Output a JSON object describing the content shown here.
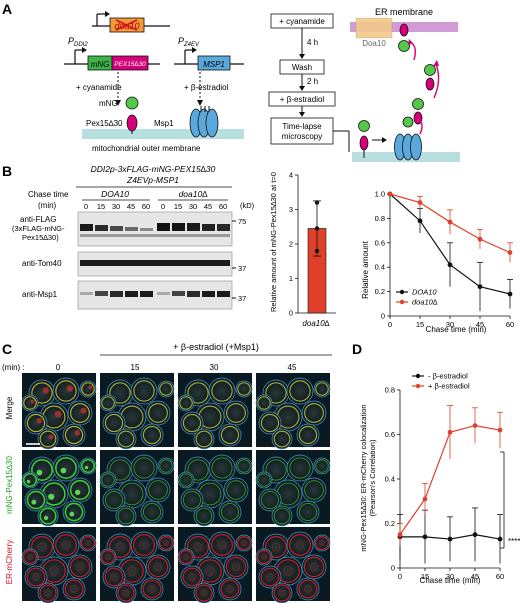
{
  "panelA": {
    "letter": "A",
    "gene_doa10": "doa10",
    "promoter_ddi2": "P",
    "promoter_ddi2_sub": "DDI2",
    "promoter_z4ev": "P",
    "promoter_z4ev_sub": "Z4EV",
    "gene_mng": "mNG",
    "gene_pex": "PEX15∆30",
    "gene_msp1": "MSP1",
    "add_cyanamide": "+ cyanamide",
    "add_estradiol": "+ β-estradiol",
    "label_mng": "mNG",
    "label_pex": "Pex15∆30",
    "label_msp1": "Msp1",
    "label_mito": "mitochondrial outer membrane",
    "flow_cyanamide": "+ cyanamide",
    "flow_4h": "4 h",
    "flow_wash": "Wash",
    "flow_2h": "2 h",
    "flow_estradiol": "+ β-estradiol",
    "flow_timelapse1": "Time-lapse",
    "flow_timelapse2": "microscopy",
    "er_membrane": "ER membrane",
    "doa10_cartoon": "Doa10"
  },
  "panelB": {
    "letter": "B",
    "construct1": "DDI2p-3xFLAG-mNG-PEX15∆30",
    "construct2": "Z4EVp-MSP1",
    "chase_label": "Chase time",
    "chase_unit": "(min)",
    "strain1": "DOA10",
    "strain2": "doa10∆",
    "times": [
      "0",
      "15",
      "30",
      "45",
      "60",
      "0",
      "15",
      "30",
      "45",
      "60"
    ],
    "kd": "(kD)",
    "blot1_l1": "anti-FLAG",
    "blot1_l2": "(3xFLAG-mNG-",
    "blot1_l3": "Pex15∆30)",
    "blot2": "anti-Tom40",
    "blot3": "anti-Msp1",
    "mw75": "75",
    "mw37a": "37",
    "mw37b": "37"
  },
  "bar_chart": {
    "ylabel": "Relative amount of mNG-Pex15∆30 at t=0",
    "xlabel": "doa10∆",
    "ticks": [
      "0",
      "1",
      "2",
      "3",
      "4"
    ]
  },
  "line_chart_B": {
    "ylabel": "Relative amount",
    "xlabel": "Chase time (min)",
    "yticks": [
      "0",
      "0.2",
      "0.4",
      "0.6",
      "0.8",
      "1.0"
    ],
    "xticks": [
      "0",
      "15",
      "30",
      "45",
      "60"
    ],
    "legend": [
      "DOA10",
      "doa10∆"
    ]
  },
  "panelC": {
    "letter": "C",
    "header": "+ β-estradiol (+Msp1)",
    "min_label": "(min) :",
    "times": [
      "0",
      "15",
      "30",
      "45"
    ],
    "row1": "Merge",
    "row2": "mNG-Pex15∆30",
    "row3": "ER-mCherry"
  },
  "panelD": {
    "letter": "D",
    "ylabel1": "mNG-Pex15∆30: ER-mCherry colocalization",
    "ylabel2": "(Pearson's Correlation)",
    "xlabel": "Chase time (min)",
    "yticks": [
      "0",
      "0.2",
      "0.4",
      "0.6",
      "0.8"
    ],
    "xticks": [
      "0",
      "15",
      "30",
      "45",
      "60"
    ],
    "legend": [
      "- β-estradiol",
      "+ β-estradiol"
    ],
    "signif": "****"
  },
  "chart_data": [
    {
      "type": "bar",
      "categories": [
        "doa10∆"
      ],
      "values": [
        2.45
      ],
      "error": [
        0.8
      ],
      "points": [
        1.8,
        2.45,
        3.2
      ],
      "ylim": [
        0,
        4
      ],
      "xlabel": "doa10∆",
      "ylabel": "Relative amount of mNG-Pex15∆30 at t=0",
      "color": "#e0402a"
    },
    {
      "type": "line",
      "x": [
        0,
        15,
        30,
        45,
        60
      ],
      "xlim": [
        0,
        60
      ],
      "ylim": [
        0,
        1.0
      ],
      "xlabel": "Chase time (min)",
      "ylabel": "Relative amount",
      "series": [
        {
          "name": "DOA10",
          "values": [
            1.0,
            0.78,
            0.42,
            0.24,
            0.18
          ],
          "error": [
            0,
            0.1,
            0.18,
            0.2,
            0.12
          ],
          "color": "#111111"
        },
        {
          "name": "doa10∆",
          "values": [
            1.0,
            0.93,
            0.77,
            0.63,
            0.52
          ],
          "error": [
            0,
            0.05,
            0.1,
            0.08,
            0.08
          ],
          "color": "#e0402a"
        }
      ]
    },
    {
      "type": "line",
      "x": [
        0,
        15,
        30,
        45,
        60
      ],
      "xlim": [
        0,
        60
      ],
      "ylim": [
        0,
        0.8
      ],
      "xlabel": "Chase time (min)",
      "ylabel": "mNG-Pex15∆30: ER-mCherry colocalization (Pearson's Correlation)",
      "series": [
        {
          "name": "- β-estradiol",
          "values": [
            0.14,
            0.14,
            0.13,
            0.15,
            0.13
          ],
          "error": [
            0.1,
            0.12,
            0.1,
            0.12,
            0.11
          ],
          "color": "#111111"
        },
        {
          "name": "+ β-estradiol",
          "values": [
            0.15,
            0.31,
            0.61,
            0.64,
            0.62
          ],
          "error": [
            0.05,
            0.07,
            0.12,
            0.08,
            0.08
          ],
          "color": "#e0402a"
        }
      ]
    }
  ]
}
